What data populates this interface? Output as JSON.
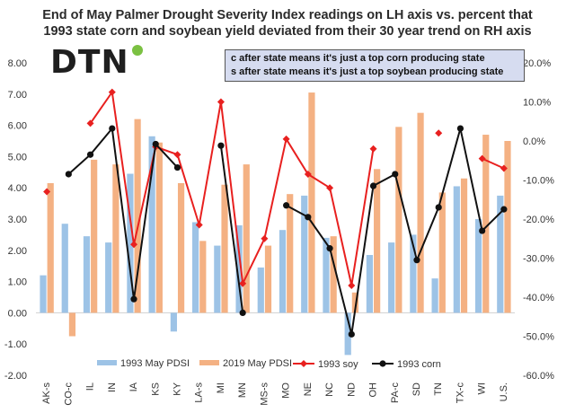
{
  "title_lines": [
    "End of May Palmer Drought Severity Index readings on LH axis vs. percent that",
    "1993 state corn and soybean yield deviated from their 30 year trend on RH axis"
  ],
  "logo": {
    "text": "DTN",
    "dot_color": "#7bc142"
  },
  "note_lines": [
    "c after state means it's just a top corn producing state",
    "s after state means it's just a top soybean producing state"
  ],
  "chart_data": {
    "type": "bar",
    "categories": [
      "AK-s",
      "CO-c",
      "IL",
      "IN",
      "IA",
      "KS",
      "KY",
      "LA-s",
      "MI",
      "MN",
      "MS-s",
      "MO",
      "NE",
      "NC",
      "ND",
      "OH",
      "PA-c",
      "SD",
      "TN",
      "TX-c",
      "WI",
      "U.S."
    ],
    "left_axis": {
      "min": -2,
      "max": 8,
      "ticks": [
        "-2.00",
        "-1.00",
        "0.00",
        "1.00",
        "2.00",
        "3.00",
        "4.00",
        "5.00",
        "6.00",
        "7.00",
        "8.00"
      ]
    },
    "right_axis": {
      "min": -60,
      "max": 20,
      "ticks": [
        "-60.0%",
        "-50.0%",
        "-40.0%",
        "-30.0%",
        "-20.0%",
        "-10.0%",
        "0.0%",
        "10.0%",
        "20.0%"
      ]
    },
    "series": [
      {
        "name": "1993 May PDSI",
        "type": "bar",
        "axis": "left",
        "color": "#9dc3e6",
        "values": [
          1.2,
          2.85,
          2.45,
          2.25,
          4.45,
          5.65,
          -0.6,
          2.9,
          2.15,
          2.8,
          1.45,
          2.65,
          3.75,
          2.4,
          -1.35,
          1.85,
          2.25,
          2.5,
          1.1,
          4.05,
          3.0,
          3.75
        ]
      },
      {
        "name": "2019 May PDSI",
        "type": "bar",
        "axis": "left",
        "color": "#f4b183",
        "values": [
          4.15,
          -0.75,
          4.9,
          4.75,
          6.2,
          5.45,
          4.15,
          2.3,
          4.1,
          4.75,
          2.15,
          3.8,
          7.05,
          2.45,
          0.65,
          4.6,
          5.95,
          6.4,
          3.85,
          4.3,
          5.7,
          5.5
        ]
      },
      {
        "name": "1993 soy",
        "type": "line",
        "axis": "right",
        "color": "#e8201f",
        "values": [
          -13,
          null,
          4.5,
          12.5,
          -26.5,
          -1.5,
          -3.5,
          -21.5,
          10,
          -36.5,
          -25,
          0.5,
          -8.5,
          -12,
          -37,
          -2,
          null,
          null,
          2,
          null,
          -4.5,
          -7
        ]
      },
      {
        "name": "1993 corn",
        "type": "line",
        "axis": "right",
        "color": "#111111",
        "values": [
          null,
          -8.5,
          -3.5,
          3.2,
          -40.5,
          -0.8,
          -6.8,
          null,
          -1.2,
          -44,
          null,
          -16.5,
          -19.5,
          -27.5,
          -49.5,
          -11.5,
          -8.5,
          -30.5,
          -17,
          3.2,
          -23,
          -17.5
        ]
      }
    ],
    "legend_position": "bottom",
    "grid": false
  }
}
